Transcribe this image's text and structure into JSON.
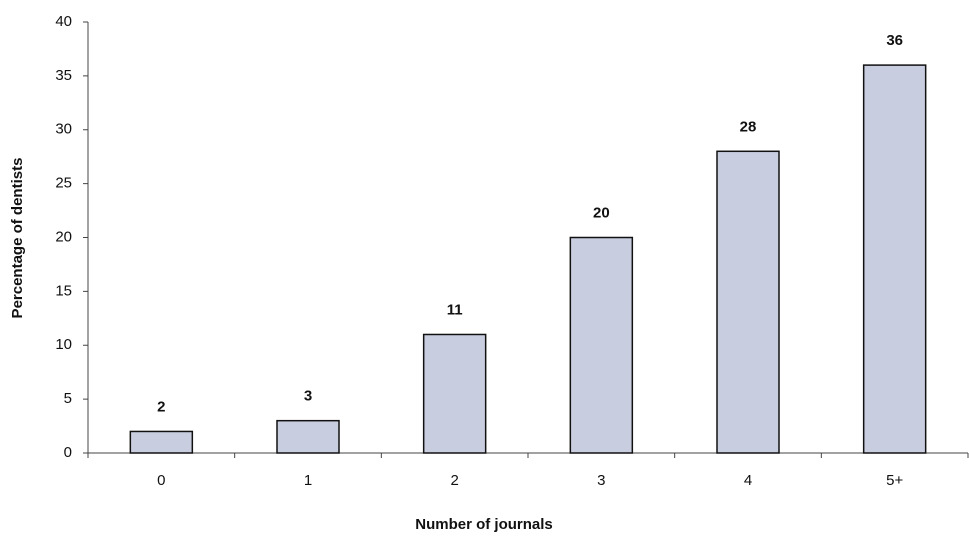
{
  "chart_data": {
    "type": "bar",
    "categories": [
      "0",
      "1",
      "2",
      "3",
      "4",
      "5+"
    ],
    "values": [
      2,
      3,
      11,
      20,
      28,
      36
    ],
    "color": "#c9cde0",
    "ylim": [
      0,
      40
    ],
    "yticks": [
      0,
      5,
      10,
      15,
      20,
      25,
      30,
      35,
      40
    ],
    "x_label": "Number of journals",
    "y_label": "Percentage of dentists",
    "grid": false
  }
}
